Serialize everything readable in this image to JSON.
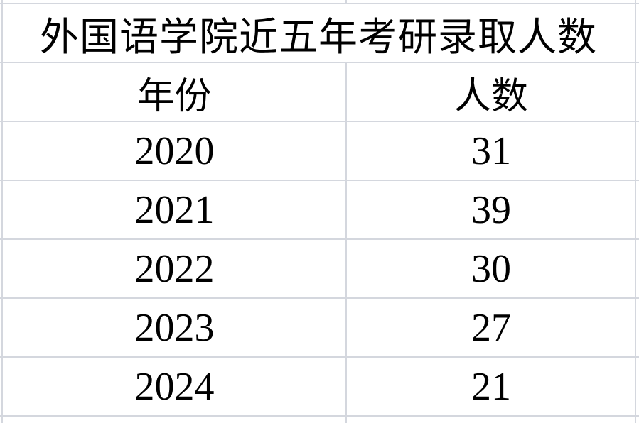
{
  "title": "外国语学院近五年考研录取人数",
  "headers": {
    "year": "年份",
    "count": "人数"
  },
  "rows": [
    {
      "year": "2020",
      "count": "31"
    },
    {
      "year": "2021",
      "count": "39"
    },
    {
      "year": "2022",
      "count": "30"
    },
    {
      "year": "2023",
      "count": "27"
    },
    {
      "year": "2024",
      "count": "21"
    }
  ],
  "colors": {
    "gridline": "#d4d7de"
  }
}
